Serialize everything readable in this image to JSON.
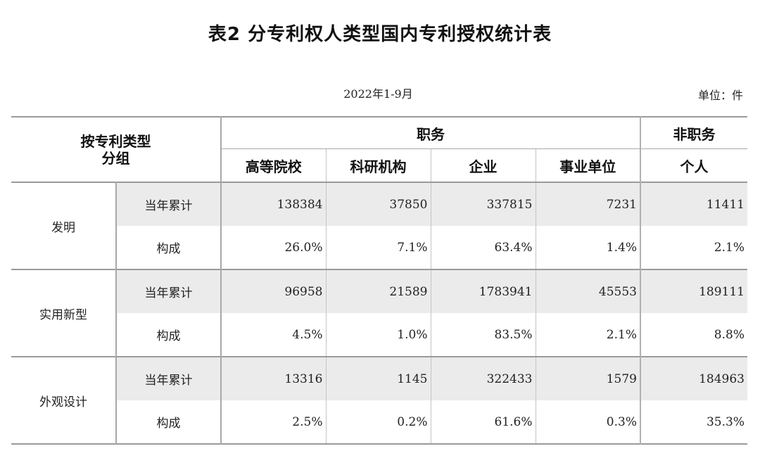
{
  "title": "表2  分专利权人类型国内专利授权统计表",
  "period": "2022年1-9月",
  "unit": "单位：件",
  "header": {
    "corner_line1": "按专利类型",
    "corner_line2": "分组",
    "group_service": "职务",
    "group_nonservice": "非职务",
    "columns": [
      "高等院校",
      "科研机构",
      "企业",
      "事业单位",
      "个人"
    ]
  },
  "groups": [
    {
      "name": "发明",
      "rows": [
        {
          "label": "当年累计",
          "values": [
            "138384",
            "37850",
            "337815",
            "7231",
            "11411"
          ]
        },
        {
          "label": "构成",
          "values": [
            "26.0%",
            "7.1%",
            "63.4%",
            "1.4%",
            "2.1%"
          ]
        }
      ]
    },
    {
      "name": "实用新型",
      "rows": [
        {
          "label": "当年累计",
          "values": [
            "96958",
            "21589",
            "1783941",
            "45553",
            "189111"
          ]
        },
        {
          "label": "构成",
          "values": [
            "4.5%",
            "1.0%",
            "83.5%",
            "2.1%",
            "8.8%"
          ]
        }
      ]
    },
    {
      "name": "外观设计",
      "rows": [
        {
          "label": "当年累计",
          "values": [
            "13316",
            "1145",
            "322433",
            "1579",
            "184963"
          ]
        },
        {
          "label": "构成",
          "values": [
            "2.5%",
            "0.2%",
            "61.6%",
            "0.3%",
            "35.3%"
          ]
        }
      ]
    }
  ]
}
